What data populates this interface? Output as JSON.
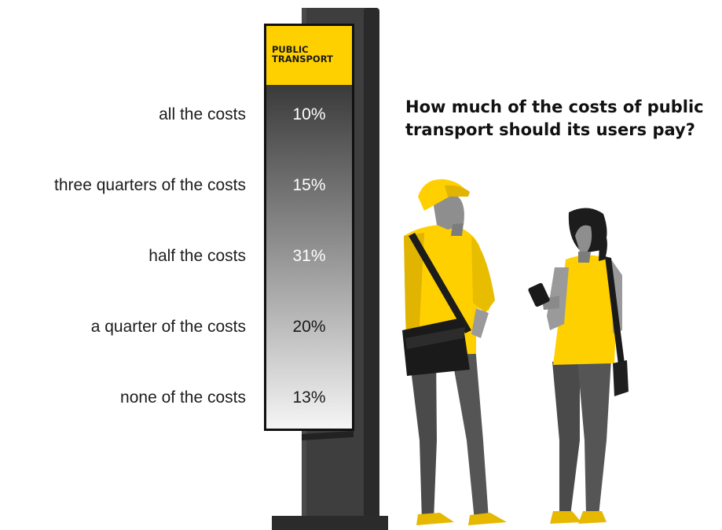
{
  "chart_data": {
    "type": "table",
    "title": "How much of the costs of public transport should its users pay?",
    "header": "PUBLIC TRANSPORT",
    "categories": [
      "all the costs",
      "three quarters of the costs",
      "half the costs",
      "a quarter of the costs",
      "none of the costs"
    ],
    "values": [
      "10%",
      "15%",
      "31%",
      "20%",
      "13%"
    ],
    "colors": {
      "accent": "#ffd000",
      "pillar": "#3a3a3a",
      "sign_dark": "#3c3c3c",
      "sign_light": "#f4f4f4"
    }
  },
  "icons": [
    "info-pillar",
    "man-with-bag-figure",
    "woman-with-phone-figure"
  ]
}
